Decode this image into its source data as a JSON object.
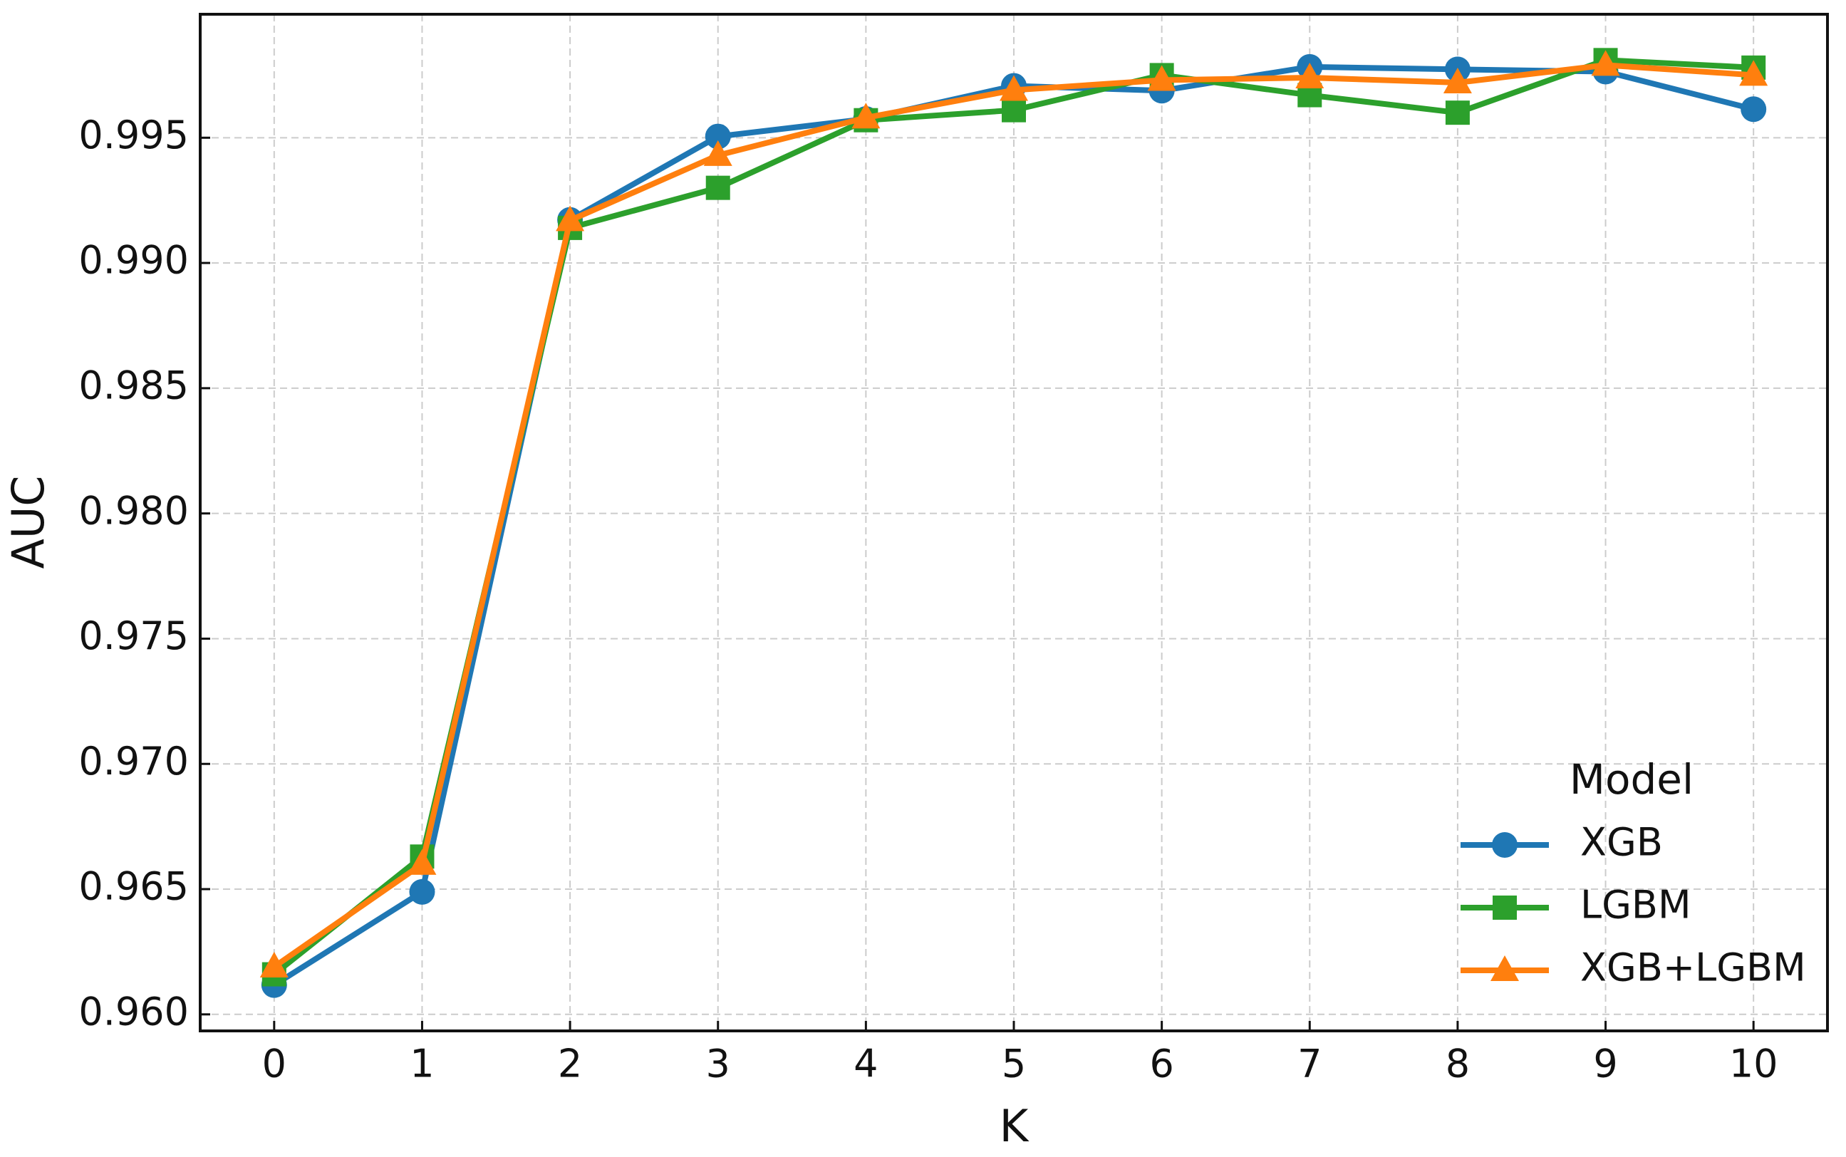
{
  "chart_data": {
    "type": "line",
    "x_label": "K",
    "y_label": "AUC",
    "x": [
      0,
      1,
      2,
      3,
      4,
      5,
      6,
      7,
      8,
      9,
      10
    ],
    "series": [
      {
        "name": "XGB",
        "color": "#1f77b4",
        "marker": "circle",
        "values": [
          0.96117,
          0.96489,
          0.99172,
          0.99505,
          0.99575,
          0.99707,
          0.99688,
          0.99783,
          0.99773,
          0.99764,
          0.99614
        ]
      },
      {
        "name": "LGBM",
        "color": "#2ca02c",
        "marker": "square",
        "values": [
          0.9616,
          0.9663,
          0.9914,
          0.993,
          0.9957,
          0.9961,
          0.9975,
          0.9967,
          0.996,
          0.9981,
          0.9978
        ]
      },
      {
        "name": "XGB+LGBM",
        "color": "#ff7f0e",
        "marker": "triangle",
        "values": [
          0.9619,
          0.966,
          0.9917,
          0.9943,
          0.9958,
          0.9969,
          0.9973,
          0.9974,
          0.9972,
          0.9979,
          0.9975
        ]
      }
    ],
    "xlim": [
      -0.5,
      10.5
    ],
    "ylim": [
      0.95934,
      0.99993
    ],
    "xticks": [
      0,
      1,
      2,
      3,
      4,
      5,
      6,
      7,
      8,
      9,
      10
    ],
    "yticks": [
      {
        "value": 0.96,
        "label": "0.960"
      },
      0.965,
      {
        "value": 0.97,
        "label": "0.970"
      },
      0.975,
      {
        "value": 0.98,
        "label": "0.980"
      },
      0.985,
      {
        "value": 0.99,
        "label": "0.990"
      },
      0.995
    ],
    "grid": true,
    "legend_title": "Model",
    "legend_position": "lower right"
  }
}
